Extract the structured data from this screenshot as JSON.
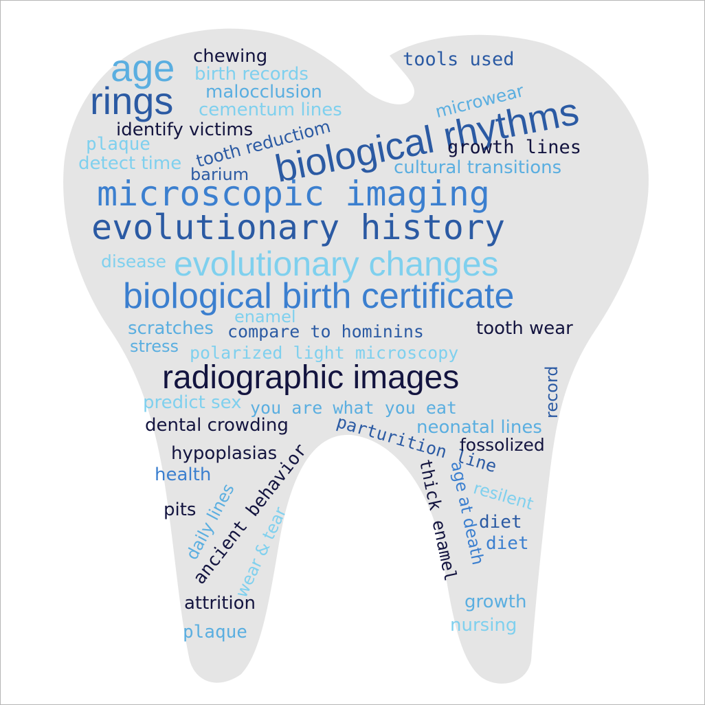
{
  "palette": {
    "background": "#ffffff",
    "tooth": "#e5e5e5",
    "navy": "#13143f",
    "dark_blue": "#2b5aa3",
    "mid_blue": "#3b7fcf",
    "light_blue": "#5aaee0",
    "pale_blue": "#7fd0ee"
  },
  "words": [
    {
      "id": "age",
      "text": "age"
    },
    {
      "id": "chewing",
      "text": "chewing"
    },
    {
      "id": "birth-records",
      "text": "birth records"
    },
    {
      "id": "tools-used",
      "text": "tools used"
    },
    {
      "id": "rings",
      "text": "rings"
    },
    {
      "id": "malocclusion",
      "text": "malocclusion"
    },
    {
      "id": "microwear",
      "text": "microwear"
    },
    {
      "id": "cementum-lines",
      "text": "cementum lines"
    },
    {
      "id": "biological-rhythms",
      "text": "biological rhythms"
    },
    {
      "id": "identify-victims",
      "text": "identify victims"
    },
    {
      "id": "plaque-top",
      "text": "plaque"
    },
    {
      "id": "tooth-reductiom",
      "text": "tooth reductiom"
    },
    {
      "id": "growth-lines",
      "text": "growth lines"
    },
    {
      "id": "detect-time",
      "text": "detect time"
    },
    {
      "id": "barium",
      "text": "barium"
    },
    {
      "id": "cultural-transitions",
      "text": "cultural transitions"
    },
    {
      "id": "microscopic-imaging",
      "text": "microscopic imaging"
    },
    {
      "id": "evolutionary-history",
      "text": "evolutionary history"
    },
    {
      "id": "disease",
      "text": "disease"
    },
    {
      "id": "evolutionary-changes",
      "text": "evolutionary changes"
    },
    {
      "id": "biological-birth-certificate",
      "text": "biological birth certificate"
    },
    {
      "id": "enamel",
      "text": "enamel"
    },
    {
      "id": "scratches",
      "text": "scratches"
    },
    {
      "id": "compare-to-hominins",
      "text": "compare to hominins"
    },
    {
      "id": "tooth-wear",
      "text": "tooth wear"
    },
    {
      "id": "stress",
      "text": "stress"
    },
    {
      "id": "polarized-light-microscopy",
      "text": "polarized light microscopy"
    },
    {
      "id": "radiographic-images",
      "text": "radiographic images"
    },
    {
      "id": "record",
      "text": "record"
    },
    {
      "id": "predict-sex",
      "text": "predict sex"
    },
    {
      "id": "you-are-what-you-eat",
      "text": "you are what you eat"
    },
    {
      "id": "dental-crowding",
      "text": "dental crowding"
    },
    {
      "id": "parturition-line",
      "text": "parturition line"
    },
    {
      "id": "neonatal-lines",
      "text": "neonatal lines"
    },
    {
      "id": "fossolized",
      "text": "fossolized"
    },
    {
      "id": "hypoplasias",
      "text": "hypoplasias"
    },
    {
      "id": "ancient-behavior",
      "text": "ancient behavior"
    },
    {
      "id": "health",
      "text": "health"
    },
    {
      "id": "daily-lines",
      "text": "daily lines"
    },
    {
      "id": "thick-enamel",
      "text": "thick enamel"
    },
    {
      "id": "age-at-death",
      "text": "age at death"
    },
    {
      "id": "resilent",
      "text": "resilent"
    },
    {
      "id": "pits",
      "text": "pits"
    },
    {
      "id": "diet-1",
      "text": "diet"
    },
    {
      "id": "diet-2",
      "text": "diet"
    },
    {
      "id": "wear-tear",
      "text": "wear & tear"
    },
    {
      "id": "attrition",
      "text": "attrition"
    },
    {
      "id": "growth",
      "text": "growth"
    },
    {
      "id": "nursing",
      "text": "nursing"
    },
    {
      "id": "plaque-bottom",
      "text": "plaque"
    }
  ]
}
